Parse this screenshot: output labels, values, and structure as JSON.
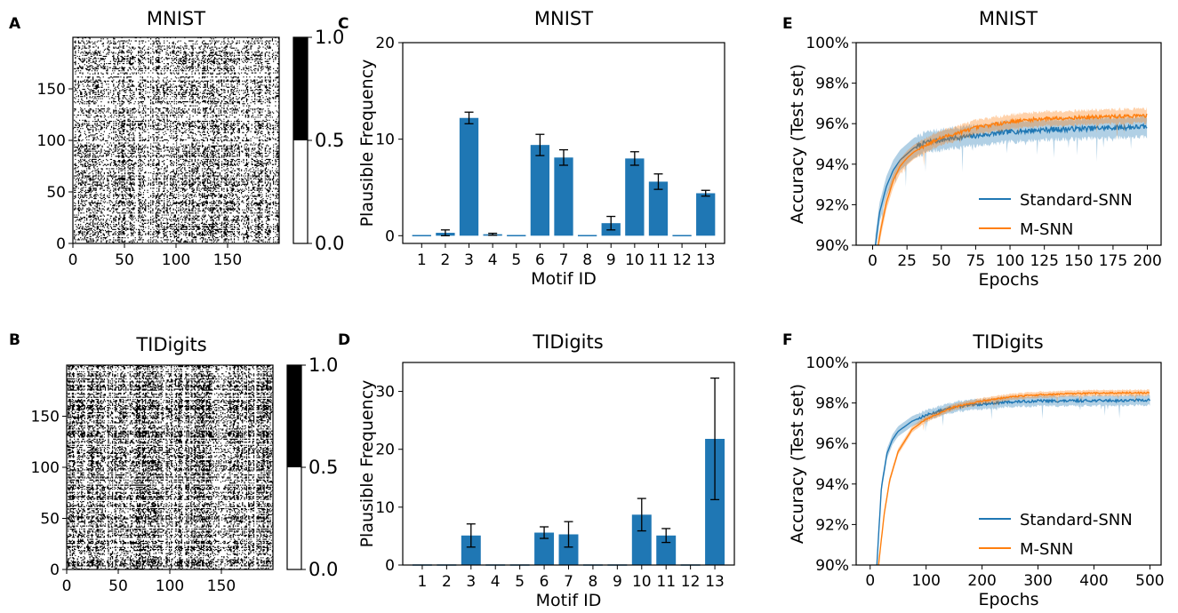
{
  "figure": {
    "panel_letters": [
      "A",
      "B",
      "C",
      "D",
      "E",
      "F"
    ]
  },
  "chart_data": [
    {
      "panel": "A",
      "type": "heatmap",
      "title": "MNIST",
      "xticks": [
        "0",
        "50",
        "100",
        "150"
      ],
      "yticks": [
        "0",
        "50",
        "100",
        "150"
      ],
      "size": 200,
      "density": 0.38,
      "colorbar": {
        "ticks": [
          "0.0",
          "0.5",
          "1.0"
        ],
        "colors": [
          "#ffffff",
          "#000000"
        ]
      }
    },
    {
      "panel": "B",
      "type": "heatmap",
      "title": "TIDigits",
      "xticks": [
        "0",
        "50",
        "100",
        "150"
      ],
      "yticks": [
        "0",
        "50",
        "100",
        "150"
      ],
      "size": 200,
      "density": 0.5,
      "colorbar": {
        "ticks": [
          "0.0",
          "0.5",
          "1.0"
        ],
        "colors": [
          "#ffffff",
          "#000000"
        ]
      }
    },
    {
      "panel": "C",
      "type": "bar",
      "title": "MNIST",
      "xlabel": "Motif ID",
      "ylabel": "Plausible Frequency",
      "ylim": [
        -0.8,
        20
      ],
      "yticks": [
        0,
        10,
        20
      ],
      "categories": [
        "1",
        "2",
        "3",
        "4",
        "5",
        "6",
        "7",
        "8",
        "9",
        "10",
        "11",
        "12",
        "13"
      ],
      "values": [
        0,
        0.3,
        12.2,
        0.15,
        0,
        9.4,
        8.1,
        0,
        1.3,
        8.0,
        5.6,
        0,
        4.4
      ],
      "errors": [
        0,
        0.3,
        0.6,
        0.1,
        0,
        1.1,
        0.8,
        0,
        0.7,
        0.7,
        0.8,
        0,
        0.3
      ],
      "color": "#1f77b4"
    },
    {
      "panel": "D",
      "type": "bar",
      "title": "TIDigits",
      "xlabel": "Motif ID",
      "ylabel": "Plausible Frequency",
      "ylim": [
        0,
        35
      ],
      "yticks": [
        0,
        10,
        20,
        30
      ],
      "categories": [
        "1",
        "2",
        "3",
        "4",
        "5",
        "6",
        "7",
        "8",
        "9",
        "10",
        "11",
        "12",
        "13"
      ],
      "values": [
        0,
        0,
        5.1,
        0,
        0,
        5.6,
        5.3,
        0,
        0,
        8.7,
        5.1,
        0,
        21.8
      ],
      "errors": [
        0,
        0,
        2.0,
        0,
        0,
        1.0,
        2.2,
        0,
        0,
        2.8,
        1.2,
        0,
        10.5
      ],
      "color": "#1f77b4"
    },
    {
      "panel": "E",
      "type": "line",
      "title": "MNIST",
      "xlabel": "Epochs",
      "ylabel": "Accuracy (Test set)",
      "xlim": [
        -12,
        210
      ],
      "ylim": [
        90,
        100
      ],
      "xticks": [
        0,
        25,
        50,
        75,
        100,
        125,
        150,
        175,
        200
      ],
      "yticks": [
        90,
        92,
        94,
        96,
        98,
        100
      ],
      "ytick_labels": [
        "90%",
        "92%",
        "94%",
        "96%",
        "98%",
        "100%"
      ],
      "legend": {
        "position": "lower-right",
        "entries": [
          "Standard-SNN",
          "M-SNN"
        ]
      },
      "series": [
        {
          "name": "Standard-SNN",
          "color": "#1f77b4",
          "x": [
            2,
            5,
            10,
            15,
            20,
            25,
            30,
            40,
            50,
            60,
            75,
            100,
            125,
            150,
            175,
            200
          ],
          "y": [
            90,
            91.6,
            92.9,
            93.7,
            94.2,
            94.5,
            94.8,
            95.1,
            95.2,
            95.3,
            95.4,
            95.6,
            95.7,
            95.75,
            95.8,
            95.85
          ],
          "band": 0.5
        },
        {
          "name": "M-SNN",
          "color": "#ff7f0e",
          "x": [
            4,
            6,
            10,
            15,
            20,
            25,
            30,
            40,
            50,
            60,
            75,
            100,
            125,
            150,
            175,
            200
          ],
          "y": [
            90,
            90.8,
            92.1,
            93.2,
            93.9,
            94.3,
            94.6,
            95.0,
            95.3,
            95.5,
            95.8,
            96.1,
            96.25,
            96.3,
            96.35,
            96.4
          ],
          "band": 0.35
        }
      ]
    },
    {
      "panel": "F",
      "type": "line",
      "title": "TIDigits",
      "xlabel": "Epochs",
      "ylabel": "Accuracy (Test set)",
      "xlim": [
        -25,
        520
      ],
      "ylim": [
        90,
        100
      ],
      "xticks": [
        0,
        100,
        200,
        300,
        400,
        500
      ],
      "yticks": [
        90,
        92,
        94,
        96,
        98,
        100
      ],
      "ytick_labels": [
        "90%",
        "92%",
        "94%",
        "96%",
        "98%",
        "100%"
      ],
      "legend": {
        "position": "lower-right",
        "entries": [
          "Standard-SNN",
          "M-SNN"
        ]
      },
      "series": [
        {
          "name": "Standard-SNN",
          "color": "#1f77b4",
          "x": [
            12,
            20,
            30,
            40,
            50,
            75,
            100,
            150,
            200,
            250,
            300,
            350,
            400,
            450,
            500
          ],
          "y": [
            90,
            93.8,
            95.5,
            96.2,
            96.6,
            97.1,
            97.4,
            97.8,
            97.95,
            98.05,
            98.1,
            98.1,
            98.12,
            98.12,
            98.15
          ],
          "band": 0.25
        },
        {
          "name": "M-SNN",
          "color": "#ff7f0e",
          "x": [
            15,
            25,
            35,
            50,
            75,
            100,
            150,
            200,
            250,
            300,
            350,
            400,
            450,
            500
          ],
          "y": [
            90,
            92.5,
            94.2,
            95.6,
            96.7,
            97.2,
            97.8,
            98.1,
            98.3,
            98.4,
            98.45,
            98.48,
            98.5,
            98.5
          ],
          "band": 0.15
        }
      ]
    }
  ]
}
